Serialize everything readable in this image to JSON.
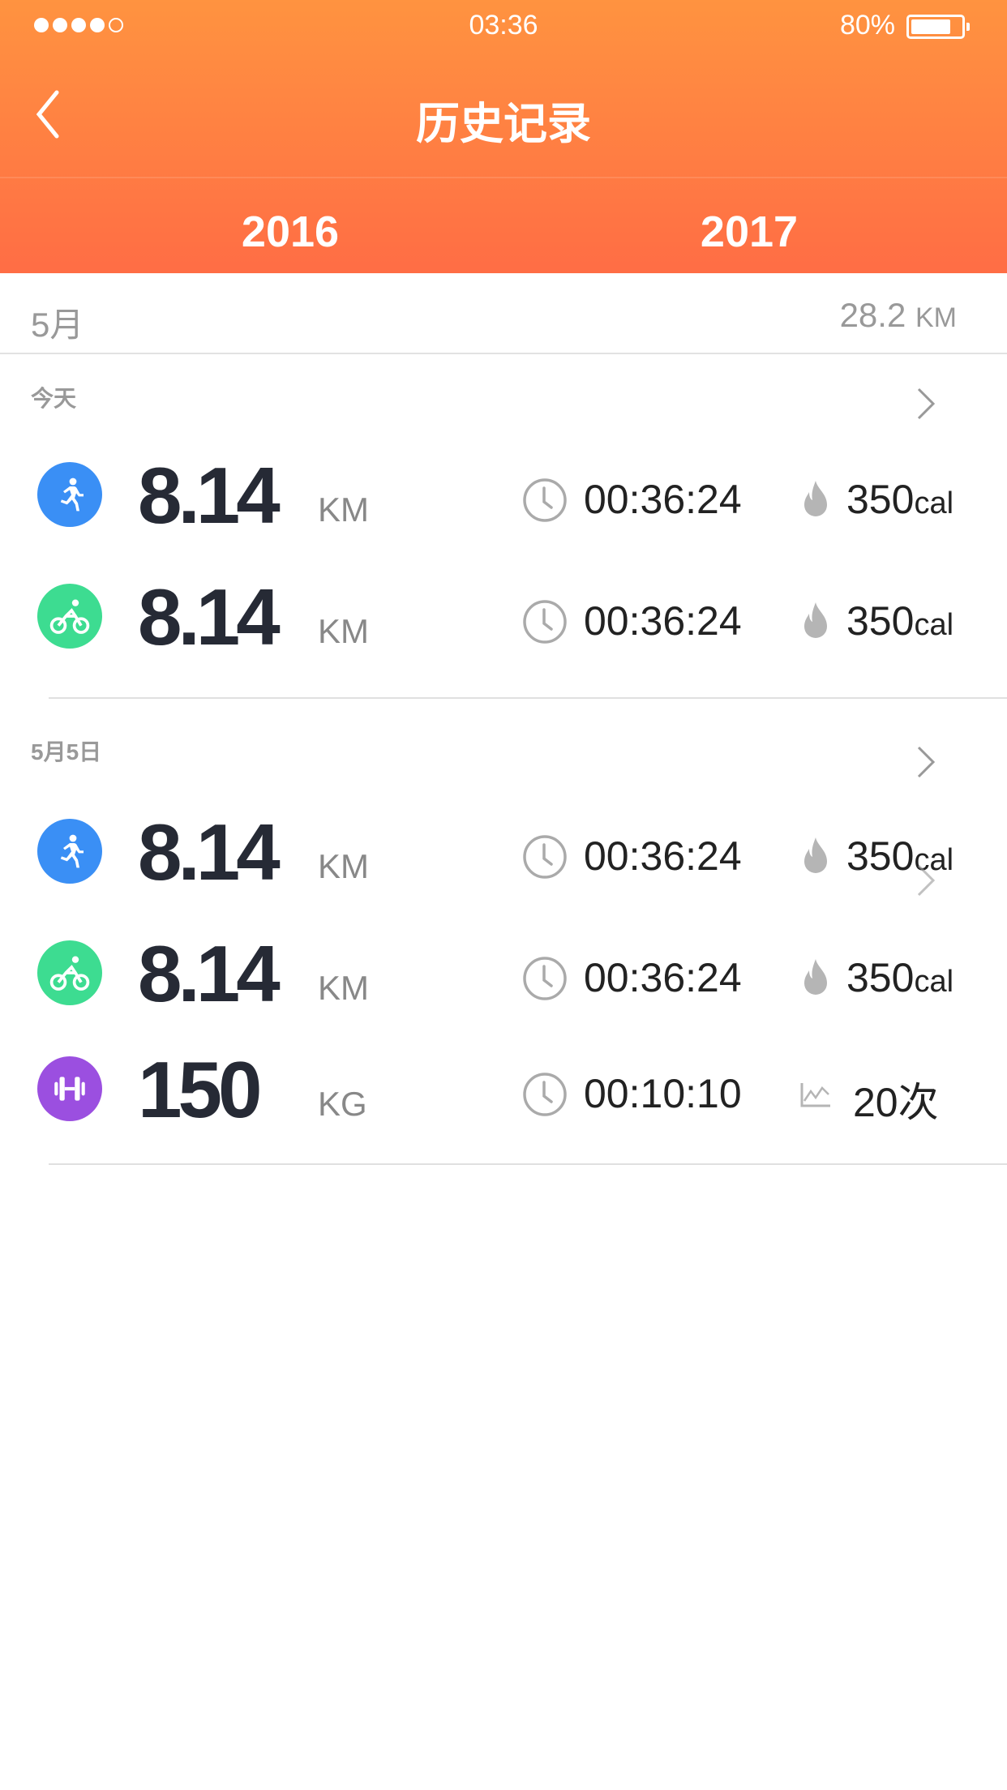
{
  "status": {
    "time": "03:36",
    "battery": "80%",
    "battery_level": 0.8,
    "signal_bars": 4,
    "signal_total": 5
  },
  "nav": {
    "title": "历史记录",
    "back_icon": "chevron-left-icon"
  },
  "tabs": [
    {
      "label": "2016",
      "active": false
    },
    {
      "label": "2017",
      "active": true
    }
  ],
  "month": {
    "label": "5月",
    "total": "28.2",
    "total_unit": "KM"
  },
  "groups": [
    {
      "label": "今天",
      "items": [
        {
          "type": "run",
          "color": "#3a8ff5",
          "value": "8.14",
          "unit": "KM",
          "duration": "00:36:24",
          "extra": "350",
          "extra_unit": "cal",
          "extra_icon": "flame-icon"
        },
        {
          "type": "bike",
          "color": "#3ddc91",
          "value": "8.14",
          "unit": "KM",
          "duration": "00:36:24",
          "extra": "350",
          "extra_unit": "cal",
          "extra_icon": "flame-icon"
        }
      ]
    },
    {
      "label": "5月5日",
      "items": [
        {
          "type": "run",
          "color": "#3a8ff5",
          "value": "8.14",
          "unit": "KM",
          "duration": "00:36:24",
          "extra": "350",
          "extra_unit": "cal",
          "extra_icon": "flame-icon"
        },
        {
          "type": "bike",
          "color": "#3ddc91",
          "value": "8.14",
          "unit": "KM",
          "duration": "00:36:24",
          "extra": "350",
          "extra_unit": "cal",
          "extra_icon": "flame-icon"
        },
        {
          "type": "weight",
          "color": "#9b4fe0",
          "value": "150",
          "unit": "KG",
          "duration": "00:10:10",
          "extra": "20次",
          "extra_unit": "",
          "extra_icon": "trend-chart-icon"
        }
      ]
    }
  ],
  "colors": {
    "header_top": "#ff9340",
    "header_bottom": "#ff6d45"
  }
}
